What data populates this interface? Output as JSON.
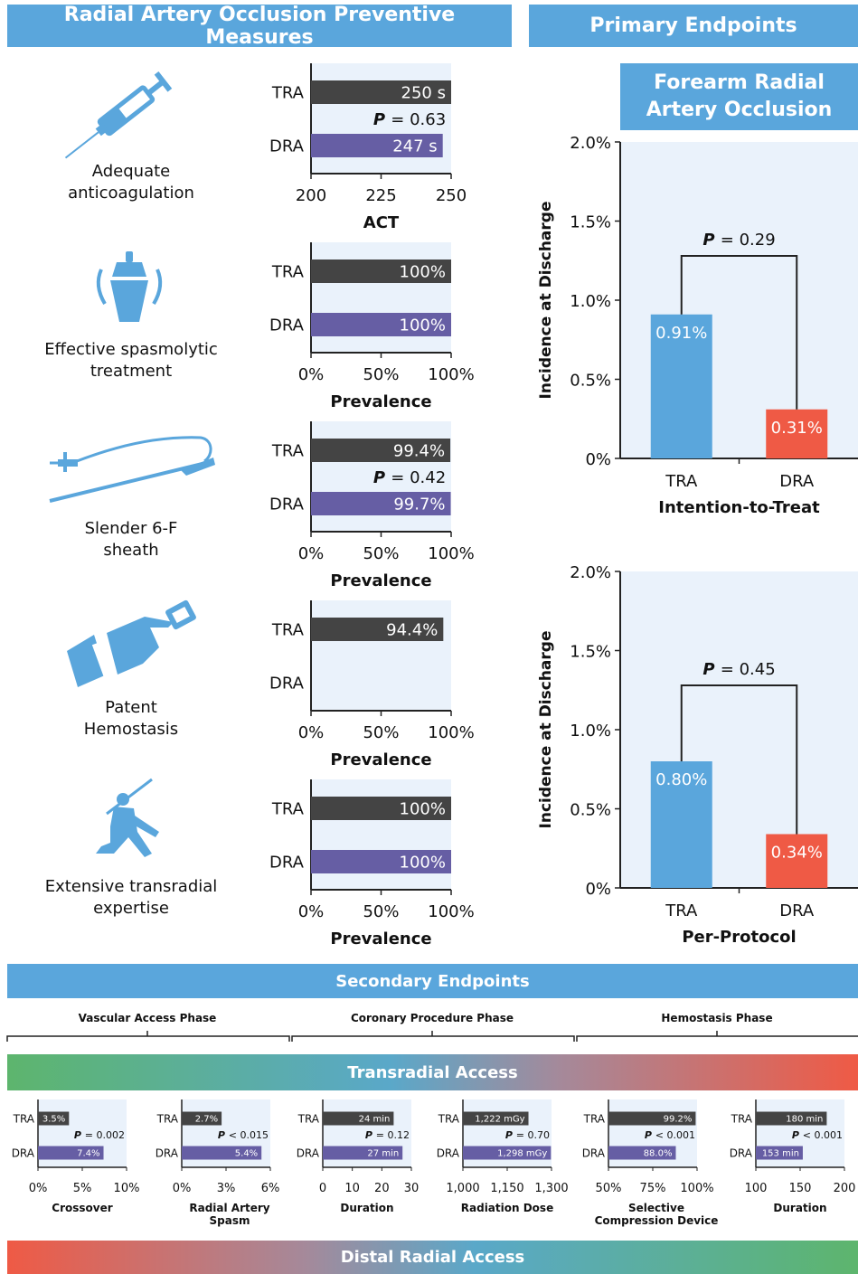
{
  "headers": {
    "left": "Radial Artery Occlusion Preventive Measures",
    "right": "Primary Endpoints",
    "forearm": "Forearm Radial Artery Occlusion",
    "secondary": "Secondary Endpoints",
    "transradial": "Transradial Access",
    "distal": "Distal Radial Access"
  },
  "phases": [
    "Vascular Access Phase",
    "Coronary Procedure Phase",
    "Hemostasis Phase"
  ],
  "measures": [
    {
      "label": "Adequate anticoagulation",
      "icon": "syringe-icon"
    },
    {
      "label": "Effective spasmolytic treatment",
      "icon": "cocktail-shaker-icon"
    },
    {
      "label": "Slender 6-F sheath",
      "icon": "sheath-icon"
    },
    {
      "label": "Patent Hemostasis",
      "icon": "hand-device-icon"
    },
    {
      "label": "Extensive transradial expertise",
      "icon": "ninja-icon"
    }
  ],
  "colors": {
    "tra_bar": "#444444",
    "dra_bar": "#665ea4",
    "tra_endpoint": "#5aa6dc",
    "dra_endpoint": "#ef5a45",
    "banner": "#5aa6dc",
    "panel_bg": "#eaf2fb"
  },
  "chart_data": [
    {
      "type": "bar",
      "orientation": "horizontal",
      "categories": [
        "TRA",
        "DRA"
      ],
      "values": [
        250,
        247
      ],
      "value_labels": [
        "250 s",
        "247 s"
      ],
      "p_text": "= 0.63",
      "xlim": [
        200,
        250
      ],
      "ticks": [
        "200",
        "225",
        "250"
      ],
      "tick_values": [
        200,
        225,
        250
      ],
      "xlabel": "ACT"
    },
    {
      "type": "bar",
      "orientation": "horizontal",
      "categories": [
        "TRA",
        "DRA"
      ],
      "values": [
        100,
        100
      ],
      "value_labels": [
        "100%",
        "100%"
      ],
      "p_text": "",
      "xlim": [
        0,
        100
      ],
      "ticks": [
        "0%",
        "50%",
        "100%"
      ],
      "tick_values": [
        0,
        50,
        100
      ],
      "xlabel": "Prevalence"
    },
    {
      "type": "bar",
      "orientation": "horizontal",
      "categories": [
        "TRA",
        "DRA"
      ],
      "values": [
        99.4,
        99.7
      ],
      "value_labels": [
        "99.4%",
        "99.7%"
      ],
      "p_text": "= 0.42",
      "xlim": [
        0,
        100
      ],
      "ticks": [
        "0%",
        "50%",
        "100%"
      ],
      "tick_values": [
        0,
        50,
        100
      ],
      "xlabel": "Prevalence"
    },
    {
      "type": "bar",
      "orientation": "horizontal",
      "categories": [
        "TRA",
        "DRA"
      ],
      "values": [
        94.4,
        null
      ],
      "value_labels": [
        "94.4%",
        ""
      ],
      "p_text": "",
      "xlim": [
        0,
        100
      ],
      "ticks": [
        "0%",
        "50%",
        "100%"
      ],
      "tick_values": [
        0,
        50,
        100
      ],
      "xlabel": "Prevalence"
    },
    {
      "type": "bar",
      "orientation": "horizontal",
      "categories": [
        "TRA",
        "DRA"
      ],
      "values": [
        100,
        100
      ],
      "value_labels": [
        "100%",
        "100%"
      ],
      "p_text": "",
      "xlim": [
        0,
        100
      ],
      "ticks": [
        "0%",
        "50%",
        "100%"
      ],
      "tick_values": [
        0,
        50,
        100
      ],
      "xlabel": "Prevalence"
    },
    {
      "type": "bar",
      "categories": [
        "TRA",
        "DRA"
      ],
      "values": [
        0.91,
        0.31
      ],
      "value_labels": [
        "0.91%",
        "0.31%"
      ],
      "p_text": "= 0.29",
      "ylim": [
        0,
        2
      ],
      "yticks": [
        "0%",
        "0.5%",
        "1.0%",
        "1.5%",
        "2.0%"
      ],
      "ytick_values": [
        0,
        0.5,
        1,
        1.5,
        2
      ],
      "ylabel": "Incidence at Discharge",
      "xlabel": "Intention-to-Treat"
    },
    {
      "type": "bar",
      "categories": [
        "TRA",
        "DRA"
      ],
      "values": [
        0.8,
        0.34
      ],
      "value_labels": [
        "0.80%",
        "0.34%"
      ],
      "p_text": "= 0.45",
      "ylim": [
        0,
        2
      ],
      "yticks": [
        "0%",
        "0.5%",
        "1.0%",
        "1.5%",
        "2.0%"
      ],
      "ytick_values": [
        0,
        0.5,
        1,
        1.5,
        2
      ],
      "ylabel": "Incidence at Discharge",
      "xlabel": "Per-Protocol"
    },
    {
      "type": "bar",
      "orientation": "horizontal",
      "categories": [
        "TRA",
        "DRA"
      ],
      "values": [
        3.5,
        7.4
      ],
      "value_labels": [
        "3.5%",
        "7.4%"
      ],
      "p_text": "= 0.002",
      "xlim": [
        0,
        10
      ],
      "ticks": [
        "0%",
        "5%",
        "10%"
      ],
      "tick_values": [
        0,
        5,
        10
      ],
      "xlabel": "Crossover"
    },
    {
      "type": "bar",
      "orientation": "horizontal",
      "categories": [
        "TRA",
        "DRA"
      ],
      "values": [
        2.7,
        5.4
      ],
      "value_labels": [
        "2.7%",
        "5.4%"
      ],
      "p_text": "< 0.015",
      "xlim": [
        0,
        6
      ],
      "ticks": [
        "0%",
        "3%",
        "6%"
      ],
      "tick_values": [
        0,
        3,
        6
      ],
      "xlabel": "Radial Artery Spasm"
    },
    {
      "type": "bar",
      "orientation": "horizontal",
      "categories": [
        "TRA",
        "DRA"
      ],
      "values": [
        24,
        27
      ],
      "value_labels": [
        "24 min",
        "27 min"
      ],
      "p_text": "= 0.12",
      "xlim": [
        0,
        30
      ],
      "ticks": [
        "0",
        "10",
        "20",
        "30"
      ],
      "tick_values": [
        0,
        10,
        20,
        30
      ],
      "xlabel": "Duration"
    },
    {
      "type": "bar",
      "orientation": "horizontal",
      "categories": [
        "TRA",
        "DRA"
      ],
      "values": [
        1222,
        1298
      ],
      "value_labels": [
        "1,222 mGy",
        "1,298 mGy"
      ],
      "p_text": "= 0.70",
      "xlim": [
        1000,
        1300
      ],
      "ticks": [
        "1,000",
        "1,150",
        "1,300"
      ],
      "tick_values": [
        1000,
        1150,
        1300
      ],
      "xlabel": "Radiation Dose"
    },
    {
      "type": "bar",
      "orientation": "horizontal",
      "categories": [
        "TRA",
        "DRA"
      ],
      "values": [
        99.2,
        88.0
      ],
      "value_labels": [
        "99.2%",
        "88.0%"
      ],
      "p_text": "< 0.001",
      "xlim": [
        50,
        100
      ],
      "ticks": [
        "50%",
        "75%",
        "100%"
      ],
      "tick_values": [
        50,
        75,
        100
      ],
      "xlabel": "Selective Compression Device"
    },
    {
      "type": "bar",
      "orientation": "horizontal",
      "categories": [
        "TRA",
        "DRA"
      ],
      "values": [
        180,
        153
      ],
      "value_labels": [
        "180 min",
        "153 min"
      ],
      "p_text": "< 0.001",
      "xlim": [
        100,
        200
      ],
      "ticks": [
        "100",
        "150",
        "200"
      ],
      "tick_values": [
        100,
        150,
        200
      ],
      "xlabel": "Duration"
    }
  ]
}
